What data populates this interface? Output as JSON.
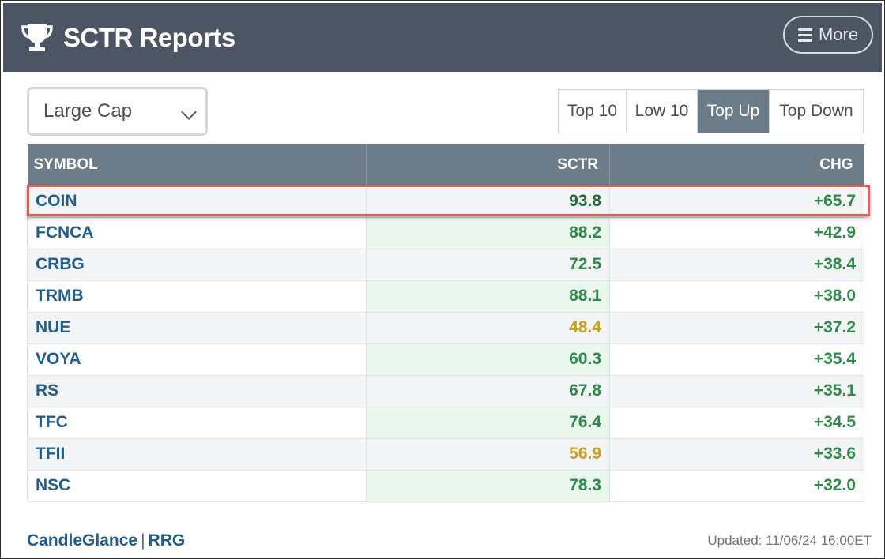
{
  "header": {
    "title": "SCTR Reports",
    "icon": "trophy-icon",
    "more_label": "More",
    "bg_color": "#4b5563"
  },
  "controls": {
    "cap_select": "Large Cap",
    "tabs": [
      {
        "label": "Top 10",
        "active": false
      },
      {
        "label": "Low 10",
        "active": false
      },
      {
        "label": "Top Up",
        "active": true
      },
      {
        "label": "Top Down",
        "active": false
      }
    ]
  },
  "table": {
    "columns": [
      "SYMBOL",
      "SCTR",
      "CHG"
    ],
    "rows": [
      {
        "symbol": "COIN",
        "sctr": "93.8",
        "chg": "+65.7",
        "sctr_level": "strong",
        "highlighted": true
      },
      {
        "symbol": "FCNCA",
        "sctr": "88.2",
        "chg": "+42.9",
        "sctr_level": "green"
      },
      {
        "symbol": "CRBG",
        "sctr": "72.5",
        "chg": "+38.4",
        "sctr_level": "green"
      },
      {
        "symbol": "TRMB",
        "sctr": "88.1",
        "chg": "+38.0",
        "sctr_level": "green"
      },
      {
        "symbol": "NUE",
        "sctr": "48.4",
        "chg": "+37.2",
        "sctr_level": "yellow"
      },
      {
        "symbol": "VOYA",
        "sctr": "60.3",
        "chg": "+35.4",
        "sctr_level": "green"
      },
      {
        "symbol": "RS",
        "sctr": "67.8",
        "chg": "+35.1",
        "sctr_level": "green"
      },
      {
        "symbol": "TFC",
        "sctr": "76.4",
        "chg": "+34.5",
        "sctr_level": "green"
      },
      {
        "symbol": "TFII",
        "sctr": "56.9",
        "chg": "+33.6",
        "sctr_level": "yellow"
      },
      {
        "symbol": "NSC",
        "sctr": "78.3",
        "chg": "+32.0",
        "sctr_level": "green"
      }
    ]
  },
  "footer": {
    "links": [
      "CandleGlance",
      "RRG"
    ],
    "separator": "|",
    "updated": "Updated: 11/06/24 16:00ET"
  },
  "colors": {
    "highlight_border": "#e85a52",
    "link": "#205d91",
    "positive": "#2e8b4a",
    "warning": "#c9a11c"
  }
}
